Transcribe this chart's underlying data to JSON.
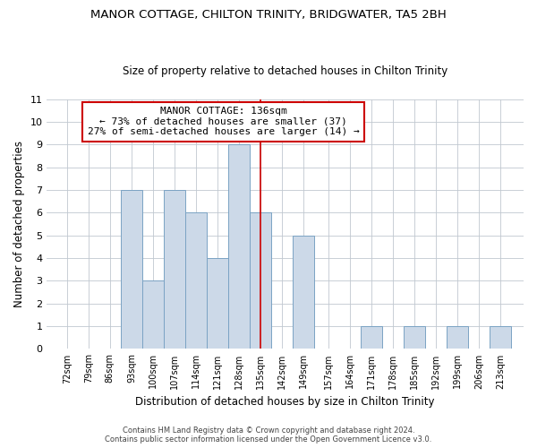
{
  "title": "MANOR COTTAGE, CHILTON TRINITY, BRIDGWATER, TA5 2BH",
  "subtitle": "Size of property relative to detached houses in Chilton Trinity",
  "xlabel": "Distribution of detached houses by size in Chilton Trinity",
  "ylabel": "Number of detached properties",
  "bin_centers": [
    72,
    79,
    86,
    93,
    100,
    107,
    114,
    121,
    128,
    135,
    142,
    149,
    157,
    164,
    171,
    178,
    185,
    192,
    199,
    206,
    213
  ],
  "bin_labels": [
    "72sqm",
    "79sqm",
    "86sqm",
    "93sqm",
    "100sqm",
    "107sqm",
    "114sqm",
    "121sqm",
    "128sqm",
    "135sqm",
    "142sqm",
    "149sqm",
    "157sqm",
    "164sqm",
    "171sqm",
    "178sqm",
    "185sqm",
    "192sqm",
    "199sqm",
    "206sqm",
    "213sqm"
  ],
  "bar_heights": [
    0,
    0,
    0,
    7,
    3,
    7,
    6,
    4,
    9,
    6,
    0,
    5,
    0,
    0,
    1,
    0,
    1,
    0,
    1,
    0,
    1
  ],
  "bar_color": "#ccd9e8",
  "bar_edge_color": "#7ba3c4",
  "property_line_x": 135,
  "vline_color": "#cc0000",
  "ylim": [
    0,
    11
  ],
  "yticks": [
    0,
    1,
    2,
    3,
    4,
    5,
    6,
    7,
    8,
    9,
    10,
    11
  ],
  "annotation_title": "MANOR COTTAGE: 136sqm",
  "annotation_line1": "← 73% of detached houses are smaller (37)",
  "annotation_line2": "27% of semi-detached houses are larger (14) →",
  "annotation_box_color": "#ffffff",
  "annotation_box_edge": "#cc0000",
  "footer_line1": "Contains HM Land Registry data © Crown copyright and database right 2024.",
  "footer_line2": "Contains public sector information licensed under the Open Government Licence v3.0.",
  "background_color": "#ffffff",
  "grid_color": "#c0c8d0"
}
